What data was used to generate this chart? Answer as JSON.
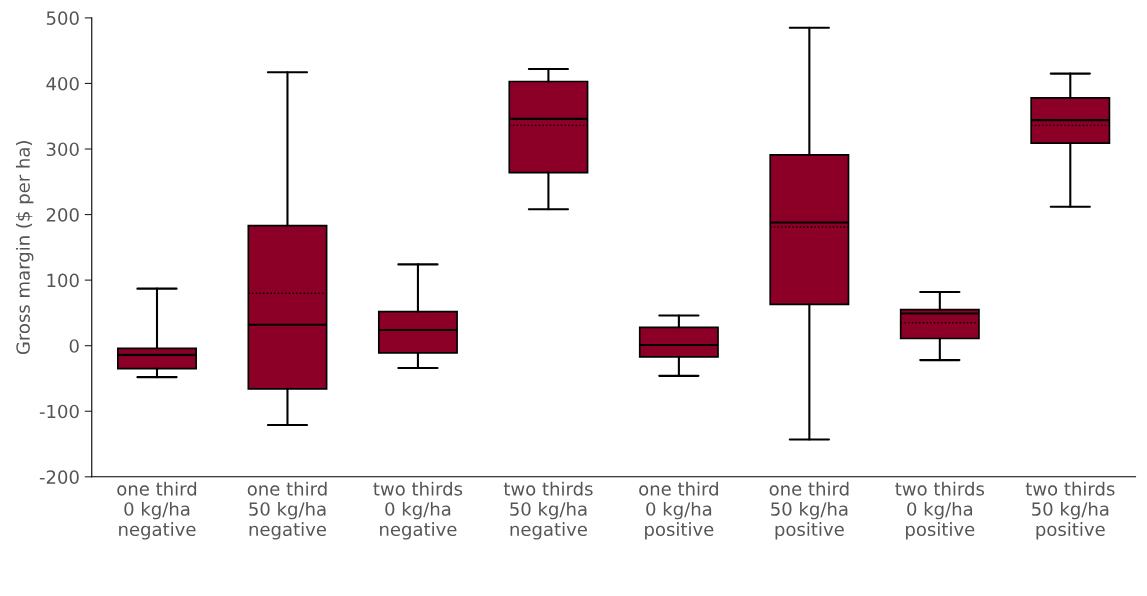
{
  "chart_data": {
    "type": "box",
    "ylabel": "Gross margin ($ per ha)",
    "categories": [
      "one third\n0 kg/ha\nnegative",
      "one third\n50 kg/ha\nnegative",
      "two thirds\n0 kg/ha\nnegative",
      "two thirds\n50 kg/ha\nnegative",
      "one third\n0 kg/ha\npositive",
      "one third\n50 kg/ha\npositive",
      "two thirds\n0 kg/ha\npositive",
      "two thirds\n50 kg/ha\npositive"
    ],
    "boxes": [
      {
        "low": -48,
        "q1": -35,
        "median": -14,
        "q3": -4,
        "high": 87,
        "mean": -15
      },
      {
        "low": -121,
        "q1": -66,
        "median": 32,
        "q3": 183,
        "high": 417,
        "mean": 80
      },
      {
        "low": -34,
        "q1": -11,
        "median": 24,
        "q3": 52,
        "high": 124,
        "mean": 24
      },
      {
        "low": 208,
        "q1": 264,
        "median": 346,
        "q3": 403,
        "high": 422,
        "mean": 336
      },
      {
        "low": -46,
        "q1": -17,
        "median": 1,
        "q3": 28,
        "high": 46,
        "mean": 1
      },
      {
        "low": -143,
        "q1": 63,
        "median": 188,
        "q3": 291,
        "high": 485,
        "mean": 181
      },
      {
        "low": -22,
        "q1": 11,
        "median": 49,
        "q3": 55,
        "high": 82,
        "mean": 35
      },
      {
        "low": 212,
        "q1": 309,
        "median": 344,
        "q3": 378,
        "high": 415,
        "mean": 336
      }
    ],
    "color": "#8c0028",
    "ylim": [
      -200,
      500
    ],
    "yticks": [
      -200,
      -100,
      0,
      100,
      200,
      300,
      400,
      500
    ],
    "grid": false
  }
}
